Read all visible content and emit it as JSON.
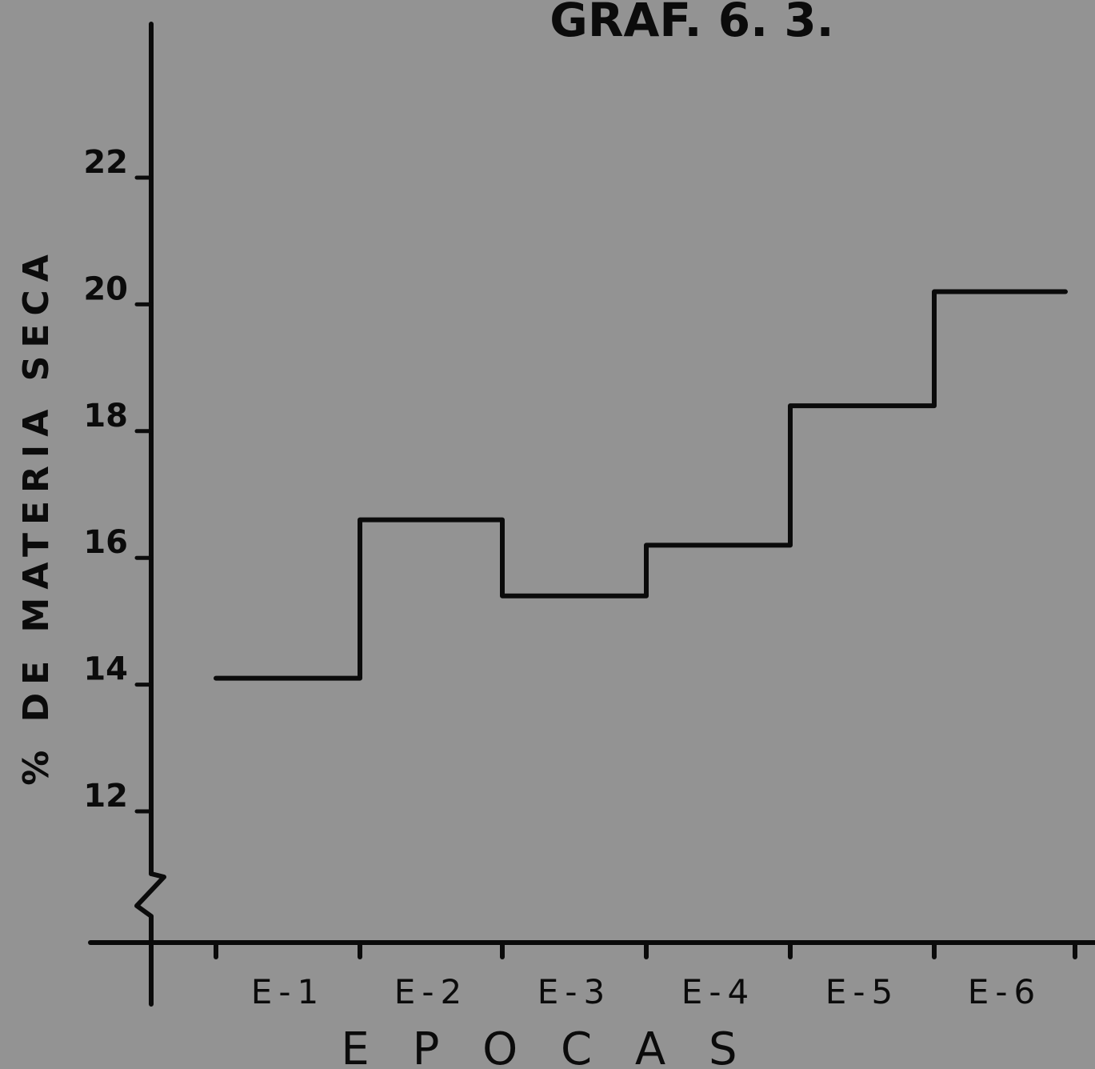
{
  "chart_data": {
    "type": "line",
    "step": true,
    "title": "GRAF. 6. 3.",
    "xlabel": "E P O C A S",
    "ylabel": "% DE MATERIA SECA",
    "categories": [
      "E-1",
      "E-2",
      "E-3",
      "E-4",
      "E-5",
      "E-6"
    ],
    "series": [
      {
        "values": [
          14.1,
          16.6,
          15.4,
          16.2,
          18.4,
          20.2
        ]
      }
    ],
    "yticks": [
      "12",
      "14",
      "16",
      "18",
      "20",
      "22"
    ],
    "ylim": [
      10,
      24
    ],
    "y_axis_break": true,
    "grid": false,
    "color": "#0b0b0b",
    "background": "#939393"
  }
}
